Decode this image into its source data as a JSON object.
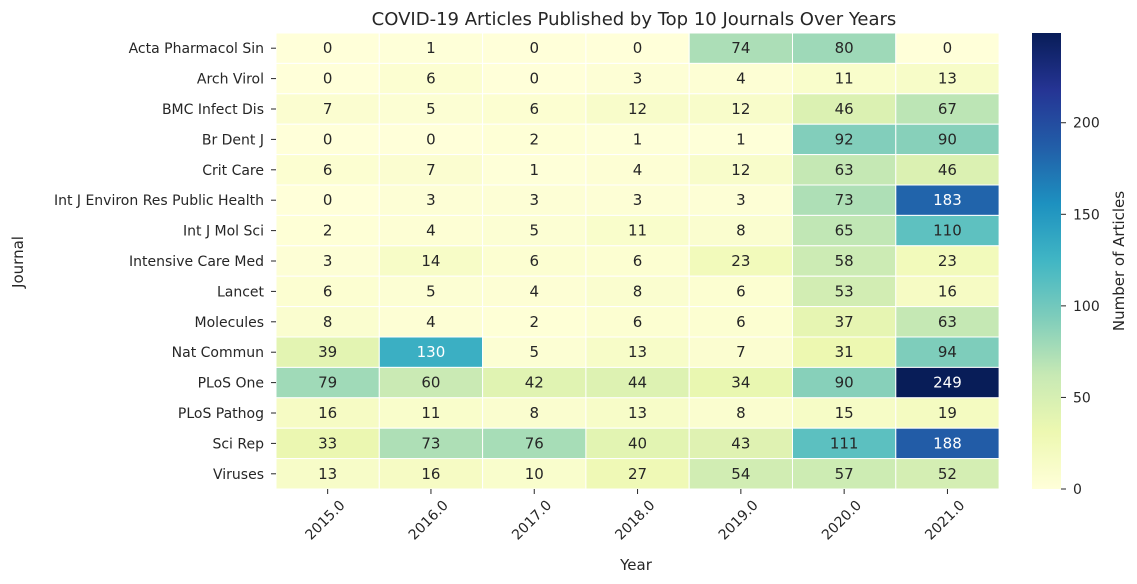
{
  "chart_data": {
    "type": "heatmap",
    "title": "COVID-19 Articles Published by Top 10 Journals Over Years",
    "xlabel": "Year",
    "ylabel": "Journal",
    "colorbar_label": "Number of Articles",
    "colormap": "YlGnBu",
    "colorbar_ticks": [
      "0",
      "50",
      "100",
      "150",
      "200"
    ],
    "colorbar_range": [
      0,
      249
    ],
    "grid_line_color": "#ffffff",
    "x": [
      "2015.0",
      "2016.0",
      "2017.0",
      "2018.0",
      "2019.0",
      "2020.0",
      "2021.0"
    ],
    "y": [
      "Acta Pharmacol Sin",
      "Arch Virol",
      "BMC Infect Dis",
      "Br Dent J",
      "Crit Care",
      "Int J Environ Res Public Health",
      "Int J Mol Sci",
      "Intensive Care Med",
      "Lancet",
      "Molecules",
      "Nat Commun",
      "PLoS One",
      "PLoS Pathog",
      "Sci Rep",
      "Viruses"
    ],
    "values": [
      [
        0,
        1,
        0,
        0,
        74,
        80,
        0
      ],
      [
        0,
        6,
        0,
        3,
        4,
        11,
        13
      ],
      [
        7,
        5,
        6,
        12,
        12,
        46,
        67
      ],
      [
        0,
        0,
        2,
        1,
        1,
        92,
        90
      ],
      [
        6,
        7,
        1,
        4,
        12,
        63,
        46
      ],
      [
        0,
        3,
        3,
        3,
        3,
        73,
        183
      ],
      [
        2,
        4,
        5,
        11,
        8,
        65,
        110
      ],
      [
        3,
        14,
        6,
        6,
        23,
        58,
        23
      ],
      [
        6,
        5,
        4,
        8,
        6,
        53,
        16
      ],
      [
        8,
        4,
        2,
        6,
        6,
        37,
        63
      ],
      [
        39,
        130,
        5,
        13,
        7,
        31,
        94
      ],
      [
        79,
        60,
        42,
        44,
        34,
        90,
        249
      ],
      [
        16,
        11,
        8,
        13,
        8,
        15,
        19
      ],
      [
        33,
        73,
        76,
        40,
        43,
        111,
        188
      ],
      [
        13,
        16,
        10,
        27,
        54,
        57,
        52
      ]
    ]
  }
}
